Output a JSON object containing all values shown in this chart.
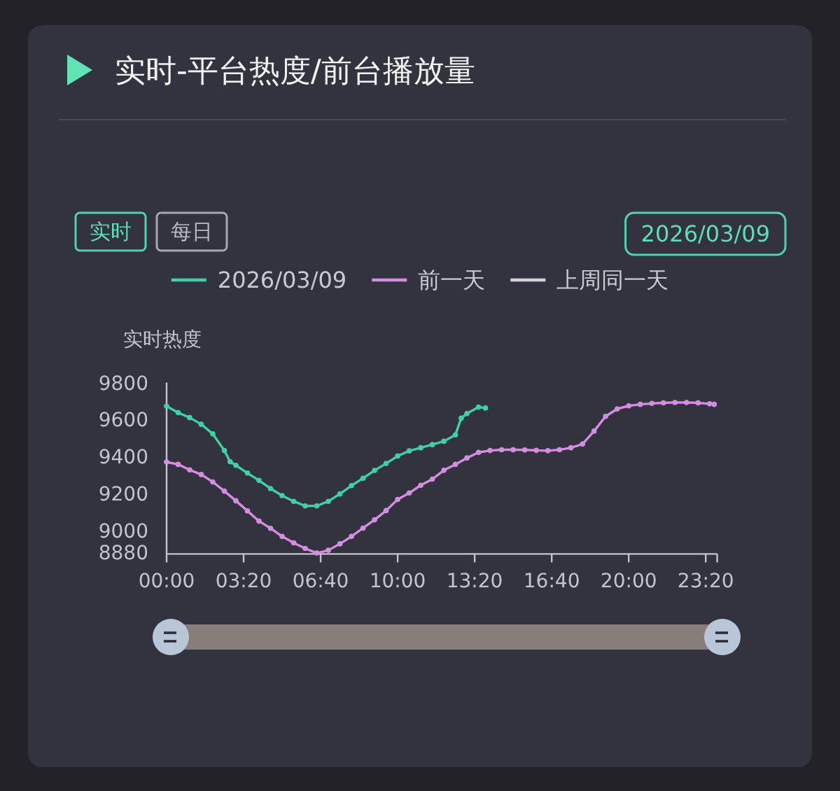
{
  "chart_data": {
    "type": "line",
    "title": "实时-平台热度/前台播放量",
    "ylabel": "实时热度",
    "annotations": [
      "实时",
      "每日",
      "2026/03/09"
    ],
    "series": [
      {
        "name": "2026/03/09",
        "color": "#3fd0a4",
        "x": [
          0,
          0.5,
          1,
          1.5,
          2,
          2.5,
          2.75,
          3,
          3.5,
          4,
          4.5,
          5,
          5.5,
          6,
          6.5,
          7,
          7.5,
          8,
          8.5,
          9,
          9.5,
          10,
          10.5,
          11,
          11.5,
          12,
          12.5,
          12.75,
          13,
          13.5,
          13.8
        ],
        "values": [
          9680,
          9645,
          9618,
          9582,
          9530,
          9440,
          9380,
          9360,
          9318,
          9278,
          9234,
          9196,
          9165,
          9140,
          9140,
          9165,
          9205,
          9250,
          9290,
          9332,
          9370,
          9410,
          9438,
          9455,
          9472,
          9490,
          9525,
          9615,
          9640,
          9675,
          9670
        ]
      },
      {
        "name": "前一天",
        "color": "#d48de0",
        "x": [
          0,
          0.5,
          1,
          1.5,
          2,
          2.5,
          3,
          3.5,
          4,
          4.5,
          5,
          5.5,
          6,
          6.5,
          7,
          7.5,
          8,
          8.5,
          9,
          9.5,
          10,
          10.5,
          11,
          11.5,
          12,
          12.5,
          13,
          13.5,
          14,
          14.5,
          15,
          15.5,
          16,
          16.5,
          17,
          17.5,
          18,
          18.5,
          19,
          19.5,
          20,
          20.5,
          21,
          21.5,
          22,
          22.5,
          23,
          23.5,
          23.7
        ],
        "values": [
          9378,
          9365,
          9335,
          9310,
          9270,
          9220,
          9168,
          9113,
          9058,
          9019,
          8975,
          8940,
          8910,
          8885,
          8900,
          8935,
          8975,
          9020,
          9065,
          9115,
          9175,
          9210,
          9252,
          9285,
          9333,
          9365,
          9400,
          9430,
          9440,
          9444,
          9444,
          9443,
          9441,
          9439,
          9444,
          9455,
          9475,
          9545,
          9625,
          9665,
          9682,
          9690,
          9695,
          9698,
          9700,
          9700,
          9698,
          9693,
          9690
        ]
      },
      {
        "name": "上周同一天",
        "color": "#d4d4d8"
      }
    ],
    "xlim": [
      0,
      23.83
    ],
    "xticks": [
      {
        "value": 0,
        "label": "00:00"
      },
      {
        "value": 3.333,
        "label": "03:20"
      },
      {
        "value": 6.667,
        "label": "06:40"
      },
      {
        "value": 10,
        "label": "10:00"
      },
      {
        "value": 13.333,
        "label": "13:20"
      },
      {
        "value": 16.667,
        "label": "16:40"
      },
      {
        "value": 20,
        "label": "20:00"
      },
      {
        "value": 23.333,
        "label": "23:20"
      },
      {
        "value": 23.83,
        "label": null
      }
    ],
    "ylim": [
      8880,
      9800
    ],
    "yticks": [
      8880,
      9000,
      9200,
      9400,
      9600,
      9800
    ],
    "legend": "top",
    "marker": "circle",
    "line_style": "solid"
  }
}
